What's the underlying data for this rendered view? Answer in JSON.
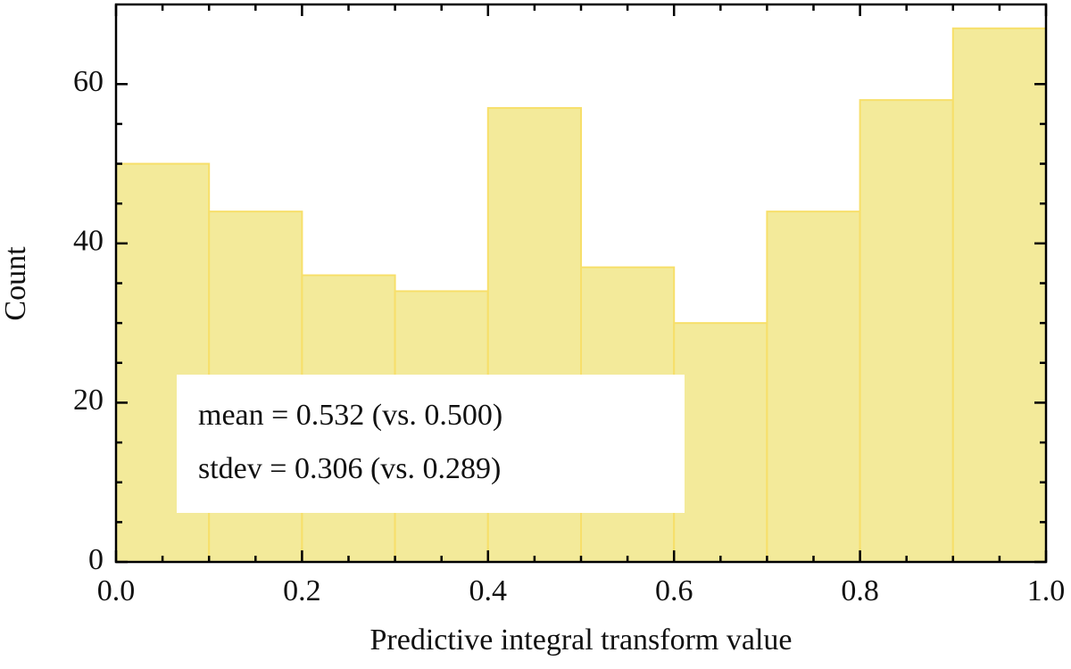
{
  "chart_data": {
    "type": "histogram",
    "xlabel": "Predictive integral transform value",
    "ylabel": "Count",
    "bins": [
      0,
      0.1,
      0.2,
      0.3,
      0.4,
      0.5,
      0.6,
      0.7,
      0.8,
      0.9,
      1
    ],
    "values": [
      50,
      44,
      36,
      34,
      57,
      37,
      30,
      44,
      58,
      67
    ],
    "color": "#f3ea9a",
    "edgecolor": "#f7df6a",
    "xlim": [
      0,
      1
    ],
    "ylim": [
      0,
      70
    ],
    "xticks": [
      {
        "value": 0,
        "label": "0.0"
      },
      0.2,
      0.4,
      0.6,
      0.8,
      {
        "value": 1,
        "label": "1.0"
      }
    ],
    "yticks": [
      0,
      20,
      40,
      60
    ],
    "annotations": [
      "mean = 0.532 (vs. 0.500)",
      "stdev = 0.306 (vs. 0.289)"
    ]
  }
}
